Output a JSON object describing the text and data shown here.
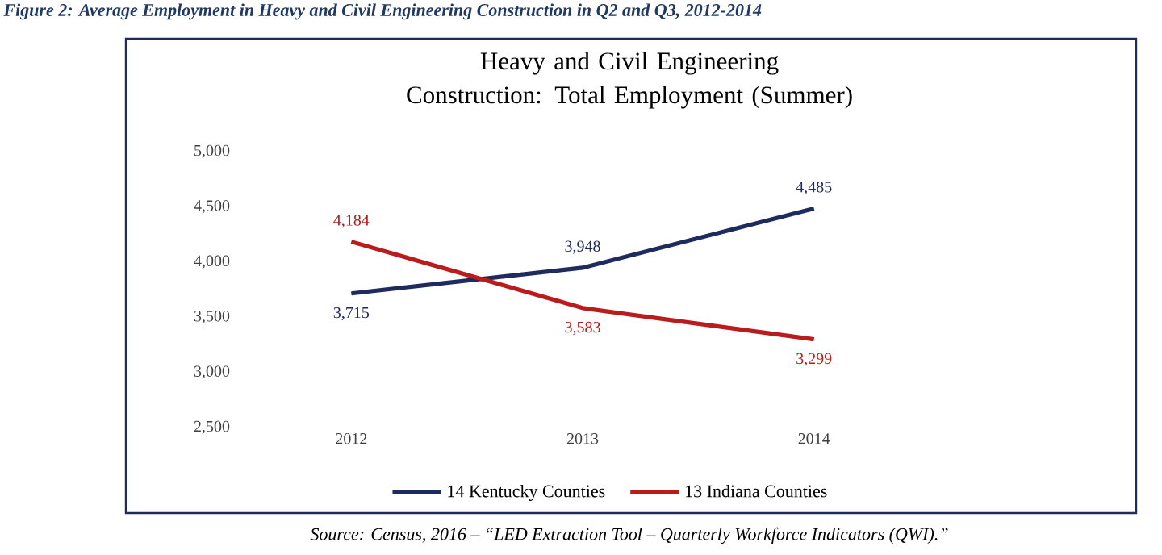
{
  "chart_data": {
    "type": "line",
    "title": "Figure 2: Average Employment in Heavy and Civil Engineering Construction in Q2 and Q3, 2012-2014",
    "subtitle": "Heavy and Civil Engineering Construction: Total Employment (Summer)",
    "categories": [
      "2012",
      "2013",
      "2014"
    ],
    "series": [
      {
        "name": "14 Kentucky Counties",
        "color": "#1f2a5e",
        "values": [
          3715,
          3948,
          4485
        ],
        "value_labels": [
          "3,715",
          "3,948",
          "4,485"
        ]
      },
      {
        "name": "13 Indiana Counties",
        "color": "#b81c1c",
        "values": [
          4184,
          3583,
          3299
        ],
        "value_labels": [
          "4,184",
          "3,583",
          "3,299"
        ]
      }
    ],
    "ylim": [
      2500,
      5000
    ],
    "yticks": [
      {
        "value": 2500,
        "label": "2,500"
      },
      {
        "value": 3000,
        "label": "3,000"
      },
      {
        "value": 3500,
        "label": "3,500"
      },
      {
        "value": 4000,
        "label": "4,000"
      },
      {
        "value": 4500,
        "label": "4,500"
      },
      {
        "value": 5000,
        "label": "5,000"
      }
    ],
    "grid": false,
    "legend": "bottom",
    "marker": "none",
    "line_style": "solid",
    "annotations": [
      "Source: Census, 2016 – “LED Extraction Tool – Quarterly Workforce Indicators (QWI).”"
    ]
  }
}
